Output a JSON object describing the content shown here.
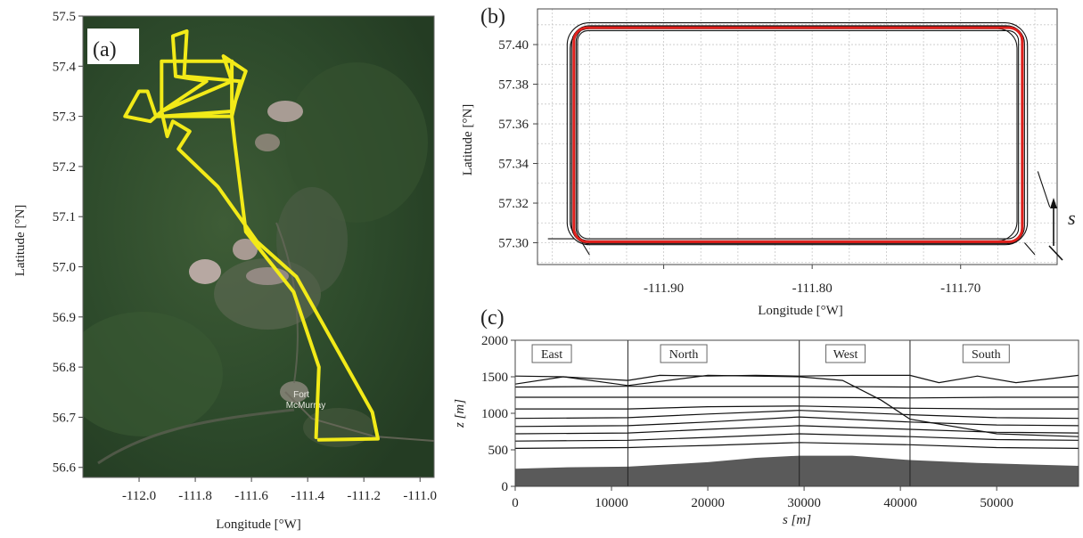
{
  "chart_data": [
    {
      "id": "a",
      "type": "line",
      "panel_label": "(a)",
      "xlabel": "Longitude [°W]",
      "ylabel": "Latitude [°N]",
      "xlim": [
        -112.2,
        -110.95
      ],
      "ylim": [
        56.58,
        57.5
      ],
      "xticks": [
        "-112.0",
        "-111.8",
        "-111.6",
        "-111.4",
        "-111.2",
        "-111.0"
      ],
      "yticks": [
        "57.5",
        "57.4",
        "57.3",
        "57.2",
        "57.1",
        "57.0",
        "56.9",
        "56.8",
        "56.7",
        "56.6"
      ],
      "map_label": [
        "Fort",
        "McMurray"
      ],
      "track_color": "#f2ea18",
      "track": [
        [
          -111.36,
          56.655
        ],
        [
          -111.15,
          56.657
        ],
        [
          -111.17,
          56.71
        ],
        [
          -111.44,
          56.98
        ],
        [
          -111.58,
          57.05
        ],
        [
          -111.72,
          57.16
        ],
        [
          -111.86,
          57.235
        ],
        [
          -111.82,
          57.27
        ],
        [
          -111.88,
          57.29
        ],
        [
          -111.9,
          57.26
        ],
        [
          -111.92,
          57.31
        ],
        [
          -111.96,
          57.29
        ],
        [
          -112.05,
          57.3
        ],
        [
          -112.0,
          57.35
        ],
        [
          -111.97,
          57.35
        ],
        [
          -111.94,
          57.3
        ],
        [
          -111.67,
          57.3
        ],
        [
          -111.67,
          57.41
        ],
        [
          -111.92,
          57.41
        ],
        [
          -111.92,
          57.3
        ],
        [
          -111.67,
          57.31
        ],
        [
          -111.62,
          57.39
        ],
        [
          -111.7,
          57.42
        ],
        [
          -111.67,
          57.37
        ],
        [
          -111.92,
          57.31
        ],
        [
          -111.76,
          57.37
        ],
        [
          -111.87,
          57.38
        ],
        [
          -111.88,
          57.46
        ],
        [
          -111.83,
          57.47
        ],
        [
          -111.84,
          57.38
        ],
        [
          -111.64,
          57.37
        ],
        [
          -111.67,
          57.3
        ],
        [
          -111.66,
          57.25
        ],
        [
          -111.62,
          57.07
        ],
        [
          -111.45,
          56.95
        ],
        [
          -111.36,
          56.8
        ],
        [
          -111.37,
          56.66
        ]
      ]
    },
    {
      "id": "b",
      "type": "line",
      "panel_label": "(b)",
      "xlabel": "Longitude [°W]",
      "ylabel": "Latitude [°N]",
      "xlim": [
        -111.985,
        -111.635
      ],
      "ylim": [
        57.289,
        57.418
      ],
      "xticks": [
        -111.9,
        -111.8,
        -111.7
      ],
      "xtick_labels": [
        "-111.90",
        "-111.80",
        "-111.70"
      ],
      "yticks": [
        57.3,
        57.32,
        57.34,
        57.36,
        57.38,
        57.4
      ],
      "ytick_labels": [
        "57.30",
        "57.32",
        "57.34",
        "57.36",
        "57.38",
        "57.40"
      ],
      "grid": true,
      "arrow_label": "s",
      "series": [
        {
          "color": "#e0201c",
          "rect": {
            "x0": -111.9605,
            "x1": -111.6585,
            "y0": 57.3005,
            "y1": 57.4085,
            "r": 0.009
          }
        },
        {
          "color": "#111111",
          "rect": {
            "x0": -111.962,
            "x1": -111.657,
            "y0": 57.2995,
            "y1": 57.4095,
            "r": 0.012
          }
        },
        {
          "color": "#111111",
          "rect": {
            "x0": -111.958,
            "x1": -111.661,
            "y0": 57.302,
            "y1": 57.407,
            "r": 0.007
          }
        },
        {
          "color": "#111111",
          "rect": {
            "x0": -111.965,
            "x1": -111.655,
            "y0": 57.299,
            "y1": 57.411,
            "r": 0.015
          }
        },
        {
          "color": "#111111",
          "rect": {
            "x0": -111.959,
            "x1": -111.659,
            "y0": 57.3,
            "y1": 57.409,
            "r": 0.01
          }
        },
        {
          "color": "#111111",
          "rect": {
            "x0": -111.963,
            "x1": -111.662,
            "y0": 57.301,
            "y1": 57.408,
            "r": 0.013
          }
        }
      ],
      "extra_lines": [
        [
          [
            -111.955,
            57.3
          ],
          [
            -111.95,
            57.294
          ]
        ],
        [
          [
            -111.96,
            57.302
          ],
          [
            -111.978,
            57.302
          ]
        ],
        [
          [
            -111.657,
            57.3
          ],
          [
            -111.65,
            57.294
          ]
        ],
        [
          [
            -111.64,
            57.318
          ],
          [
            -111.648,
            57.336
          ]
        ]
      ]
    },
    {
      "id": "c",
      "type": "line",
      "panel_label": "(c)",
      "xlabel": "s [m]",
      "ylabel": "z [m]",
      "xlim": [
        0,
        58500
      ],
      "ylim": [
        0,
        2000
      ],
      "xticks": [
        0,
        10000,
        20000,
        30000,
        40000,
        50000
      ],
      "xtick_labels": [
        "0",
        "10000",
        "20000",
        "30000",
        "40000",
        "50000"
      ],
      "yticks": [
        0,
        500,
        1000,
        1500,
        2000
      ],
      "ytick_labels": [
        "0",
        "500",
        "1000",
        "1500",
        "2000"
      ],
      "section_boundaries": [
        11700,
        29500,
        41000
      ],
      "sections": [
        {
          "name": "East",
          "center": 3800
        },
        {
          "name": "North",
          "center": 17500
        },
        {
          "name": "West",
          "center": 34300
        },
        {
          "name": "South",
          "center": 48900
        }
      ],
      "terrain": {
        "x": [
          0,
          5000,
          11700,
          20000,
          25000,
          29500,
          35000,
          41000,
          48000,
          58500
        ],
        "y": [
          240,
          260,
          270,
          330,
          390,
          420,
          420,
          360,
          320,
          280
        ]
      },
      "profiles": [
        {
          "x": [
            0,
            11700,
            20000,
            29500,
            41000,
            50000,
            58500
          ],
          "y": [
            520,
            530,
            560,
            600,
            570,
            530,
            520
          ]
        },
        {
          "x": [
            0,
            11700,
            20000,
            29500,
            41000,
            50000,
            58500
          ],
          "y": [
            620,
            630,
            670,
            720,
            680,
            640,
            630
          ]
        },
        {
          "x": [
            0,
            11700,
            20000,
            29500,
            41000,
            50000,
            58500
          ],
          "y": [
            720,
            730,
            780,
            830,
            780,
            740,
            730
          ]
        },
        {
          "x": [
            0,
            11700,
            20000,
            29500,
            41000,
            50000,
            58500
          ],
          "y": [
            820,
            830,
            880,
            950,
            880,
            840,
            830
          ]
        },
        {
          "x": [
            0,
            11700,
            20000,
            29500,
            41000,
            50000,
            58500
          ],
          "y": [
            930,
            940,
            990,
            1040,
            980,
            940,
            930
          ]
        },
        {
          "x": [
            0,
            11700,
            20000,
            29500,
            41000,
            50000,
            58500
          ],
          "y": [
            1060,
            1060,
            1090,
            1100,
            1070,
            1060,
            1060
          ]
        },
        {
          "x": [
            0,
            11700,
            20000,
            29500,
            41000,
            50000,
            58500
          ],
          "y": [
            1220,
            1220,
            1220,
            1220,
            1210,
            1220,
            1220
          ]
        },
        {
          "x": [
            0,
            11700,
            20000,
            29500,
            41000,
            50000,
            58500
          ],
          "y": [
            1360,
            1370,
            1370,
            1370,
            1360,
            1360,
            1360
          ]
        },
        {
          "x": [
            0,
            5000,
            11700,
            15000,
            20000,
            25000,
            29500,
            35000,
            41000,
            44000,
            48000,
            52000,
            58500
          ],
          "y": [
            1510,
            1500,
            1450,
            1520,
            1510,
            1520,
            1510,
            1520,
            1520,
            1420,
            1510,
            1420,
            1520
          ]
        },
        {
          "x": [
            0,
            5000,
            11700,
            20000,
            29500,
            34000,
            38000,
            41000,
            50000,
            58500
          ],
          "y": [
            1400,
            1500,
            1380,
            1520,
            1500,
            1450,
            1180,
            920,
            720,
            680
          ]
        }
      ]
    }
  ]
}
